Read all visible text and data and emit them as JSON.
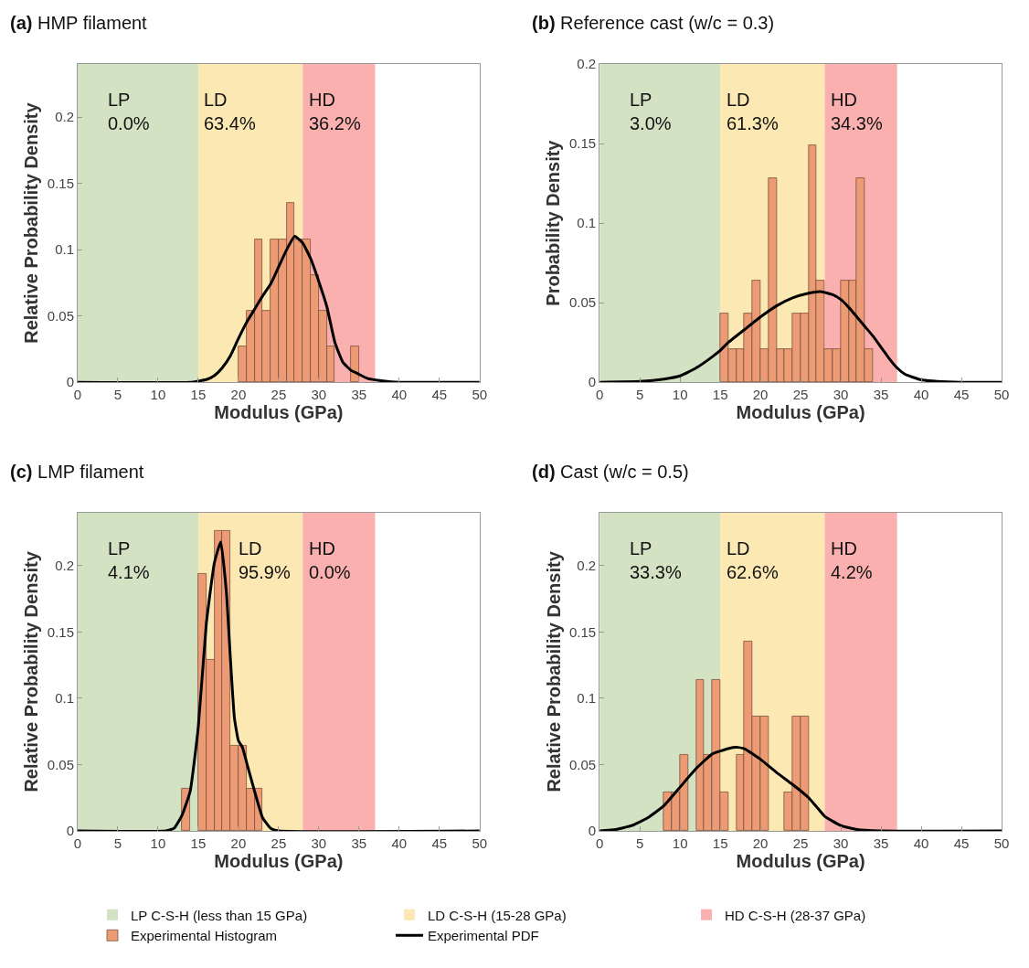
{
  "chart_data": [
    {
      "type": "histogram",
      "title": "(a) HMP filament",
      "xlabel": "Modulus (GPa)",
      "ylabel": "Relative Probability Density",
      "xlim": [
        0,
        50
      ],
      "xticks": [
        0,
        5,
        10,
        15,
        20,
        25,
        30,
        35,
        40,
        45,
        50
      ],
      "ylim": [
        0,
        0.24
      ],
      "yticks": [
        0,
        0.05,
        0.1,
        0.15,
        0.2
      ],
      "grid": false,
      "legend": "bottom",
      "bins": [
        20,
        21,
        22,
        23,
        24,
        25,
        26,
        27,
        28,
        29,
        30,
        31,
        32,
        33,
        34,
        35
      ],
      "series": [
        {
          "name": "Experimental Histogram",
          "color": "#ec9b74",
          "values": [
            0.027,
            0.054,
            0.108,
            0.054,
            0.108,
            0.108,
            0.135,
            0.108,
            0.108,
            0.081,
            0.054,
            0.027,
            0,
            0,
            0.027
          ]
        },
        {
          "type": "line",
          "name": "Experimental PDF",
          "color": "#000000",
          "x": [
            0,
            14,
            16,
            17,
            18,
            19,
            20,
            21,
            22,
            23,
            24,
            25,
            26,
            27,
            28,
            29,
            30,
            31,
            32,
            33,
            34,
            35,
            36,
            38,
            40,
            50
          ],
          "values": [
            0,
            0,
            0.002,
            0.005,
            0.011,
            0.02,
            0.033,
            0.045,
            0.055,
            0.065,
            0.074,
            0.087,
            0.1,
            0.11,
            0.105,
            0.093,
            0.076,
            0.057,
            0.03,
            0.015,
            0.009,
            0.006,
            0.003,
            0.001,
            0,
            0
          ]
        }
      ],
      "bands": [
        {
          "axis": "x",
          "from": 0,
          "to": 15,
          "color": "#d4e2c4",
          "label": "LP C-S-H (less than 15 GPa)"
        },
        {
          "axis": "x",
          "from": 15,
          "to": 28,
          "color": "#fce8b2",
          "label": "LD C-S-H (15-28 GPa)"
        },
        {
          "axis": "x",
          "from": 28,
          "to": 37,
          "color": "#fbb0b0",
          "label": "HD C-S-H (28-37 GPa)"
        }
      ],
      "annotations": [
        "LP\n0.0%",
        "LD\n63.4%",
        "HD\n36.2%"
      ]
    },
    {
      "type": "histogram",
      "title": "(b) Reference cast (w/c = 0.3)",
      "xlabel": "Modulus (GPa)",
      "ylabel": "Probability Density",
      "xlim": [
        0,
        50
      ],
      "xticks": [
        0,
        5,
        10,
        15,
        20,
        25,
        30,
        35,
        40,
        45,
        50
      ],
      "ylim": [
        0,
        0.2
      ],
      "yticks": [
        0,
        0.05,
        0.1,
        0.15,
        0.2
      ],
      "grid": false,
      "bins": [
        15,
        16,
        17,
        18,
        19,
        20,
        21,
        22,
        23,
        24,
        25,
        26,
        27,
        28,
        29,
        30,
        31,
        32,
        33,
        34
      ],
      "series": [
        {
          "color": "#ec9b74",
          "values": [
            0.043,
            0.021,
            0.021,
            0.043,
            0.064,
            0.021,
            0.128,
            0.021,
            0.021,
            0.043,
            0.043,
            0.149,
            0.064,
            0.021,
            0.021,
            0.064,
            0.064,
            0.128,
            0.021
          ]
        },
        {
          "type": "line",
          "color": "#000000",
          "x": [
            0,
            5,
            8,
            10,
            12,
            14,
            15,
            16,
            18,
            20,
            22,
            24,
            26,
            27.5,
            29,
            30,
            31,
            32,
            33,
            34,
            35,
            36,
            37,
            38,
            40,
            42,
            45,
            50
          ],
          "values": [
            0,
            0.0005,
            0.002,
            0.004,
            0.009,
            0.016,
            0.02,
            0.025,
            0.033,
            0.041,
            0.048,
            0.053,
            0.056,
            0.057,
            0.055,
            0.052,
            0.047,
            0.041,
            0.035,
            0.029,
            0.022,
            0.015,
            0.009,
            0.005,
            0.0015,
            0.0005,
            0,
            0
          ]
        }
      ],
      "bands": [
        {
          "axis": "x",
          "from": 0,
          "to": 15,
          "color": "#d4e2c4"
        },
        {
          "axis": "x",
          "from": 15,
          "to": 28,
          "color": "#fce8b2"
        },
        {
          "axis": "x",
          "from": 28,
          "to": 37,
          "color": "#fbb0b0"
        }
      ],
      "annotations": [
        "LP\n3.0%",
        "LD\n61.3%",
        "HD\n34.3%"
      ]
    },
    {
      "type": "histogram",
      "title": "(c) LMP filament",
      "xlabel": "Modulus (GPa)",
      "ylabel": "Relative Probability Density",
      "xlim": [
        0,
        50
      ],
      "xticks": [
        0,
        5,
        10,
        15,
        20,
        25,
        30,
        35,
        40,
        45,
        50
      ],
      "ylim": [
        0,
        0.24
      ],
      "yticks": [
        0,
        0.05,
        0.1,
        0.15,
        0.2
      ],
      "grid": false,
      "bins": [
        13,
        14,
        15,
        16,
        17,
        18,
        19,
        20,
        21,
        22,
        23
      ],
      "series": [
        {
          "color": "#ec9b74",
          "values": [
            0.032,
            0,
            0.194,
            0.129,
            0.226,
            0.226,
            0.064,
            0.064,
            0.032,
            0.032
          ]
        },
        {
          "type": "line",
          "color": "#000000",
          "x": [
            0,
            11,
            12,
            13,
            14,
            15,
            16,
            17,
            17.8,
            18.5,
            19,
            19.5,
            20,
            20.5,
            21,
            22,
            23,
            24,
            25,
            50
          ],
          "values": [
            0,
            0,
            0.002,
            0.012,
            0.03,
            0.078,
            0.156,
            0.202,
            0.218,
            0.18,
            0.13,
            0.085,
            0.068,
            0.063,
            0.052,
            0.03,
            0.01,
            0.002,
            0,
            0
          ]
        }
      ],
      "bands": [
        {
          "axis": "x",
          "from": 0,
          "to": 15,
          "color": "#d4e2c4"
        },
        {
          "axis": "x",
          "from": 15,
          "to": 28,
          "color": "#fce8b2"
        },
        {
          "axis": "x",
          "from": 28,
          "to": 37,
          "color": "#fbb0b0"
        }
      ],
      "annotations": [
        "LP\n4.1%",
        "LD\n95.9%",
        "HD\n0.0%"
      ]
    },
    {
      "type": "histogram",
      "title": "(d) Cast (w/c = 0.5)",
      "xlabel": "Modulus (GPa)",
      "ylabel": "Relative Probability Density",
      "xlim": [
        0,
        50
      ],
      "xticks": [
        0,
        5,
        10,
        15,
        20,
        25,
        30,
        35,
        40,
        45,
        50
      ],
      "ylim": [
        0,
        0.24
      ],
      "yticks": [
        0,
        0.05,
        0.1,
        0.15,
        0.2
      ],
      "grid": false,
      "bins": [
        8,
        9,
        10,
        11,
        12,
        13,
        14,
        15,
        16,
        17,
        18,
        19,
        20,
        21,
        22,
        23,
        24,
        25,
        26
      ],
      "series": [
        {
          "color": "#ec9b74",
          "values": [
            0.029,
            0.029,
            0.057,
            0,
            0.114,
            0.057,
            0.114,
            0.029,
            0,
            0.057,
            0.143,
            0.086,
            0.086,
            0,
            0,
            0.029,
            0.086,
            0.086
          ]
        },
        {
          "type": "line",
          "color": "#000000",
          "x": [
            0,
            2,
            4,
            6,
            8,
            10,
            12,
            14,
            16,
            17,
            18,
            20,
            22,
            24,
            26,
            27,
            28,
            30,
            32,
            35,
            50
          ],
          "values": [
            0,
            0.001,
            0.004,
            0.01,
            0.019,
            0.033,
            0.047,
            0.058,
            0.062,
            0.063,
            0.062,
            0.054,
            0.044,
            0.035,
            0.025,
            0.018,
            0.011,
            0.004,
            0.001,
            0,
            0
          ]
        }
      ],
      "bands": [
        {
          "axis": "x",
          "from": 0,
          "to": 15,
          "color": "#d4e2c4"
        },
        {
          "axis": "x",
          "from": 15,
          "to": 28,
          "color": "#fce8b2"
        },
        {
          "axis": "x",
          "from": 28,
          "to": 37,
          "color": "#fbb0b0"
        }
      ],
      "annotations": [
        "LP\n33.3%",
        "LD\n62.6%",
        "HD\n4.2%"
      ]
    }
  ]
}
